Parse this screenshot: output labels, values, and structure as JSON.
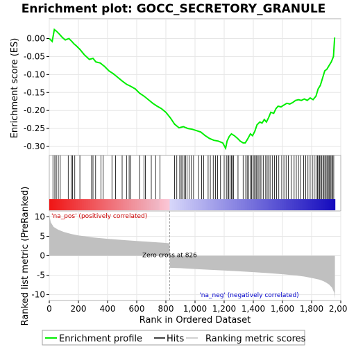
{
  "chart_data": {
    "title": "Enrichment plot: GOCC_SECRETORY_GRANULE",
    "type": "line",
    "es_panel": {
      "ylabel": "Enrichment score (ES)",
      "ylim": [
        -0.325,
        0.055
      ],
      "yticks": [
        0.0,
        -0.05,
        -0.1,
        -0.15,
        -0.2,
        -0.25,
        -0.3
      ],
      "ytick_labels": [
        "0.00",
        "-0.05",
        "-0.10",
        "-0.15",
        "-0.20",
        "-0.25",
        "-0.30"
      ],
      "line_color": "#00ee00",
      "curve": {
        "rank": [
          0,
          20,
          35,
          50,
          70,
          90,
          110,
          135,
          155,
          170,
          185,
          210,
          240,
          275,
          300,
          320,
          350,
          380,
          410,
          440,
          470,
          500,
          530,
          560,
          590,
          620,
          650,
          680,
          710,
          740,
          770,
          800,
          830,
          860,
          890,
          920,
          950,
          980,
          1010,
          1040,
          1070,
          1100,
          1130,
          1160,
          1190,
          1210,
          1220,
          1235,
          1250,
          1270,
          1290,
          1310,
          1330,
          1345,
          1360,
          1380,
          1395,
          1410,
          1425,
          1445,
          1460,
          1475,
          1490,
          1505,
          1520,
          1540,
          1555,
          1570,
          1590,
          1610,
          1630,
          1650,
          1670,
          1690,
          1710,
          1730,
          1750,
          1770,
          1790,
          1810,
          1830,
          1845,
          1860,
          1875,
          1890,
          1905,
          1920,
          1935,
          1950,
          1958
        ],
        "es": [
          0.0,
          -0.008,
          0.025,
          0.02,
          0.012,
          0.003,
          -0.004,
          0.0,
          -0.008,
          -0.015,
          -0.02,
          -0.03,
          -0.045,
          -0.058,
          -0.055,
          -0.065,
          -0.068,
          -0.078,
          -0.09,
          -0.098,
          -0.108,
          -0.118,
          -0.127,
          -0.133,
          -0.14,
          -0.152,
          -0.16,
          -0.17,
          -0.18,
          -0.188,
          -0.195,
          -0.205,
          -0.22,
          -0.238,
          -0.248,
          -0.245,
          -0.25,
          -0.252,
          -0.256,
          -0.26,
          -0.27,
          -0.278,
          -0.283,
          -0.285,
          -0.29,
          -0.305,
          -0.285,
          -0.272,
          -0.265,
          -0.27,
          -0.277,
          -0.285,
          -0.29,
          -0.29,
          -0.28,
          -0.265,
          -0.27,
          -0.258,
          -0.24,
          -0.232,
          -0.235,
          -0.225,
          -0.232,
          -0.22,
          -0.205,
          -0.208,
          -0.195,
          -0.188,
          -0.19,
          -0.185,
          -0.18,
          -0.182,
          -0.178,
          -0.172,
          -0.17,
          -0.172,
          -0.168,
          -0.172,
          -0.165,
          -0.17,
          -0.16,
          -0.14,
          -0.13,
          -0.11,
          -0.09,
          -0.085,
          -0.075,
          -0.065,
          -0.05,
          0.003
        ]
      }
    },
    "hits": {
      "rank": [
        25,
        38,
        48,
        62,
        75,
        130,
        150,
        160,
        175,
        210,
        290,
        300,
        318,
        355,
        370,
        430,
        455,
        500,
        530,
        548,
        560,
        620,
        650,
        660,
        700,
        730,
        760,
        860,
        875,
        895,
        905,
        915,
        925,
        935,
        945,
        960,
        975,
        990,
        1025,
        1045,
        1060,
        1090,
        1105,
        1125,
        1140,
        1155,
        1175,
        1200,
        1215,
        1225,
        1232,
        1240,
        1250,
        1258,
        1265,
        1295,
        1330,
        1348,
        1358,
        1368,
        1378,
        1388,
        1398,
        1405,
        1412,
        1420,
        1428,
        1438,
        1448,
        1458,
        1470,
        1485,
        1495,
        1505,
        1515,
        1530,
        1545,
        1560,
        1575,
        1595,
        1610,
        1625,
        1640,
        1660,
        1680,
        1695,
        1710,
        1725,
        1745,
        1760,
        1775,
        1790,
        1805,
        1818,
        1830,
        1840,
        1848,
        1855,
        1862,
        1870,
        1878,
        1885,
        1892,
        1900,
        1908,
        1915,
        1922,
        1930,
        1938,
        1945,
        1952
      ]
    },
    "metric_panel": {
      "ylabel": "Ranked list metric (PreRanked)",
      "ylim": [
        -11.5,
        11.5
      ],
      "yticks": [
        10,
        5,
        0,
        -5,
        -10
      ],
      "ytick_labels": [
        "10",
        "5",
        "0",
        "-5",
        "-10"
      ],
      "fill_color": "#c0c0c0",
      "metric_rank": [
        0,
        10,
        30,
        60,
        100,
        150,
        200,
        300,
        400,
        500,
        600,
        700,
        800,
        825,
        827,
        900,
        1000,
        1100,
        1200,
        1300,
        1400,
        1500,
        1600,
        1700,
        1750,
        1800,
        1850,
        1880,
        1900,
        1920,
        1940,
        1955,
        1960
      ],
      "metric_value": [
        10.6,
        8.6,
        7.4,
        6.7,
        6.1,
        5.6,
        5.2,
        4.7,
        4.35,
        4.05,
        3.8,
        3.55,
        3.3,
        3.2,
        -3.1,
        -3.2,
        -3.4,
        -3.6,
        -3.8,
        -4.0,
        -4.2,
        -4.45,
        -4.75,
        -5.1,
        -5.35,
        -5.7,
        -6.1,
        -6.5,
        -6.9,
        -7.4,
        -8.2,
        -9.5,
        -11.0
      ],
      "zero_cross_rank": 826,
      "zero_cross_label": "Zero cross at 826",
      "pos_label": "'na_pos' (positively correlated)",
      "neg_label": "'na_neg' (negatively correlated)"
    },
    "xaxis": {
      "xlabel": "Rank in Ordered Dataset",
      "xlim": [
        0,
        2000
      ],
      "n_genes": 1960,
      "xticks": [
        0,
        200,
        400,
        600,
        800,
        1000,
        1200,
        1400,
        1600,
        1800,
        2000
      ],
      "xtick_labels": [
        "0",
        "200",
        "400",
        "600",
        "800",
        "1,000",
        "1,200",
        "1,400",
        "1,600",
        "1,800",
        "2,000"
      ]
    },
    "legend": {
      "position": "bottom",
      "items": [
        {
          "label": "Enrichment profile",
          "color": "#00ee00"
        },
        {
          "label": "Hits",
          "color": "#000000"
        },
        {
          "label": "Ranking metric scores",
          "color": "#c0c0c0"
        }
      ]
    }
  }
}
